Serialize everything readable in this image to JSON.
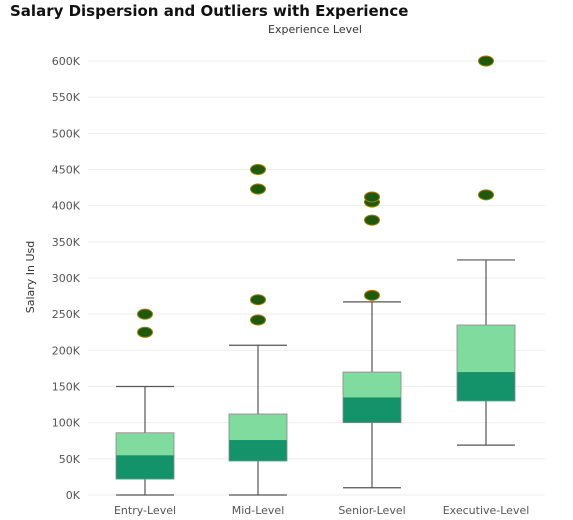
{
  "chart_data": {
    "type": "boxplot",
    "title": "Salary Dispersion and Outliers with Experience",
    "subtitle": "Experience Level",
    "ylabel": "Salary In Usd",
    "xlabel": "",
    "ylim": [
      0,
      615000
    ],
    "y_ticks": [
      0,
      50000,
      100000,
      150000,
      200000,
      250000,
      300000,
      350000,
      400000,
      450000,
      500000,
      550000,
      600000
    ],
    "y_tick_labels": [
      "0K",
      "50K",
      "100K",
      "150K",
      "200K",
      "250K",
      "300K",
      "350K",
      "400K",
      "450K",
      "500K",
      "550K",
      "600K"
    ],
    "categories": [
      "Entry-Level",
      "Mid-Level",
      "Senior-Level",
      "Executive-Level"
    ],
    "boxes": [
      {
        "category": "Entry-Level",
        "min": 0,
        "q1": 22000,
        "median": 55000,
        "q3": 86000,
        "max": 150000,
        "outliers": [
          225000,
          250000
        ]
      },
      {
        "category": "Mid-Level",
        "min": 0,
        "q1": 47000,
        "median": 76000,
        "q3": 112000,
        "max": 207000,
        "outliers": [
          242000,
          270000,
          423000,
          450000
        ]
      },
      {
        "category": "Senior-Level",
        "min": 10000,
        "q1": 100000,
        "median": 135000,
        "q3": 170000,
        "max": 267000,
        "outliers": [
          276000,
          380000,
          405000,
          412000
        ]
      },
      {
        "category": "Executive-Level",
        "min": 69000,
        "q1": 130000,
        "median": 170000,
        "q3": 235000,
        "max": 325000,
        "outliers": [
          415000,
          600000
        ]
      }
    ],
    "grid": true,
    "legend": "none",
    "colors": {
      "upper_box": "#7fdb9e",
      "lower_box": "#14936a",
      "whisker": "#555555",
      "outlier_fill": "#1f5a0c",
      "outlier_stroke": "#9a7a10",
      "grid": "#eeeeee"
    }
  }
}
